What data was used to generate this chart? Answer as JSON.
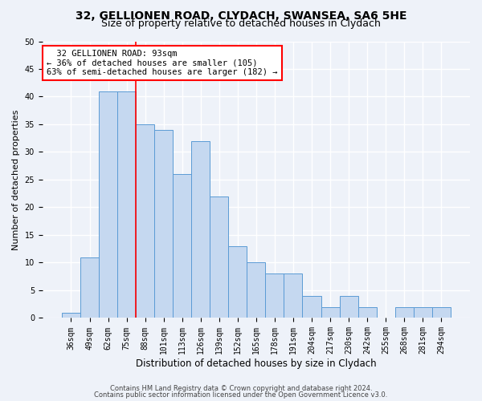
{
  "title1": "32, GELLIONEN ROAD, CLYDACH, SWANSEA, SA6 5HE",
  "title2": "Size of property relative to detached houses in Clydach",
  "xlabel": "Distribution of detached houses by size in Clydach",
  "ylabel": "Number of detached properties",
  "categories": [
    "36sqm",
    "49sqm",
    "62sqm",
    "75sqm",
    "88sqm",
    "101sqm",
    "113sqm",
    "126sqm",
    "139sqm",
    "152sqm",
    "165sqm",
    "178sqm",
    "191sqm",
    "204sqm",
    "217sqm",
    "230sqm",
    "242sqm",
    "255sqm",
    "268sqm",
    "281sqm",
    "294sqm"
  ],
  "values": [
    1,
    11,
    41,
    41,
    35,
    34,
    26,
    32,
    22,
    13,
    10,
    8,
    8,
    4,
    2,
    4,
    2,
    0,
    2,
    2,
    2
  ],
  "bar_color": "#c5d8f0",
  "bar_edge_color": "#5b9bd5",
  "annotation_text": "  32 GELLIONEN ROAD: 93sqm\n← 36% of detached houses are smaller (105)\n63% of semi-detached houses are larger (182) →",
  "annotation_box_color": "white",
  "annotation_box_edge_color": "red",
  "highlight_line_index": 4,
  "ylim": [
    0,
    50
  ],
  "yticks": [
    0,
    5,
    10,
    15,
    20,
    25,
    30,
    35,
    40,
    45,
    50
  ],
  "footer1": "Contains HM Land Registry data © Crown copyright and database right 2024.",
  "footer2": "Contains public sector information licensed under the Open Government Licence v3.0.",
  "background_color": "#eef2f9",
  "grid_color": "white",
  "title1_fontsize": 10,
  "title2_fontsize": 9,
  "tick_fontsize": 7,
  "ylabel_fontsize": 8,
  "xlabel_fontsize": 8.5,
  "annotation_fontsize": 7.5,
  "footer_fontsize": 6
}
